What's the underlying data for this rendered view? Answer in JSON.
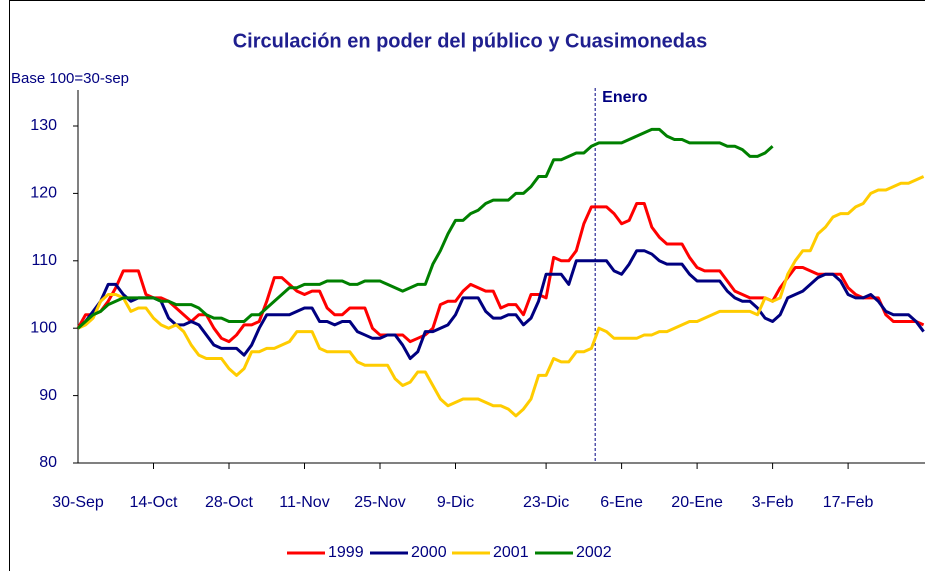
{
  "chart_data": {
    "type": "line",
    "title": "Circulación en poder del público y Cuasimonedas",
    "y_label": "Base 100=30-sep",
    "categories": [
      "30-Sep",
      null,
      null,
      null,
      null,
      null,
      null,
      null,
      null,
      null,
      "14-Oct",
      null,
      null,
      null,
      null,
      null,
      null,
      null,
      null,
      null,
      "28-Oct",
      null,
      null,
      null,
      null,
      null,
      null,
      null,
      null,
      null,
      "11-Nov",
      null,
      null,
      null,
      null,
      null,
      null,
      null,
      null,
      null,
      "25-Nov",
      null,
      null,
      null,
      null,
      null,
      null,
      null,
      null,
      null,
      "9-Dic",
      null,
      null,
      null,
      null,
      null,
      null,
      null,
      null,
      null,
      null,
      null,
      "23-Dic",
      null,
      null,
      null,
      null,
      null,
      null,
      null,
      null,
      null,
      "6-Ene",
      null,
      null,
      null,
      null,
      null,
      null,
      null,
      null,
      null,
      "20-Ene",
      null,
      null,
      null,
      null,
      null,
      null,
      null,
      null,
      null,
      "3-Feb",
      null,
      null,
      null,
      null,
      null,
      null,
      null,
      null,
      null,
      "17-Feb",
      null,
      null,
      null,
      null,
      null,
      null,
      null,
      null,
      null,
      null
    ],
    "series": [
      {
        "name": "1999",
        "color": "#ff0000",
        "values": [
          100,
          102,
          102,
          102.5,
          104,
          106,
          108.5,
          108.5,
          108.5,
          105,
          104.5,
          104.5,
          104,
          103,
          102,
          101,
          102,
          102,
          100,
          98.5,
          98,
          99,
          100.5,
          100.5,
          101,
          104,
          107.5,
          107.5,
          106.5,
          105.5,
          105,
          105.5,
          105.5,
          103,
          102,
          102,
          103,
          103,
          103,
          100,
          99,
          99,
          99,
          99,
          98,
          98.5,
          99,
          100,
          103.5,
          104,
          104,
          105.5,
          106.5,
          106,
          105.5,
          105.5,
          103,
          103.5,
          103.5,
          102,
          105,
          105,
          104.5,
          110.5,
          110,
          110,
          111.5,
          115.5,
          118,
          118,
          118,
          117,
          115.5,
          116,
          118.5,
          118.5,
          115,
          113.5,
          112.5,
          112.5,
          112.5,
          110.5,
          109,
          108.5,
          108.5,
          108.5,
          107,
          105.5,
          105,
          104.5,
          104.5,
          104.5,
          104,
          106,
          107.5,
          109,
          109,
          108.5,
          108,
          108,
          108,
          108,
          106,
          105,
          104.5,
          104.5,
          104.5,
          102,
          101,
          101,
          101,
          101,
          100.5
        ]
      },
      {
        "name": "2000",
        "color": "#000080",
        "values": [
          100,
          101,
          102.5,
          104,
          106.5,
          106.5,
          105,
          104,
          104.5,
          104.5,
          104.5,
          104,
          101.5,
          100.5,
          100.5,
          101,
          100.5,
          99,
          97.5,
          97,
          97,
          97,
          96,
          97.5,
          100,
          102,
          102,
          102,
          102,
          102.5,
          103,
          103,
          101,
          101,
          100.5,
          101,
          101,
          99.5,
          99,
          98.5,
          98.5,
          99,
          99,
          97.5,
          95.5,
          96.5,
          99.5,
          99.5,
          100,
          100.5,
          102,
          104.5,
          104.5,
          104.5,
          102.5,
          101.5,
          101.5,
          102,
          102,
          100.5,
          101.5,
          104,
          108,
          108,
          108,
          106.5,
          110,
          110,
          110,
          110,
          110,
          108.5,
          108,
          109.5,
          111.5,
          111.5,
          111,
          110,
          109.5,
          109.5,
          109.5,
          108,
          107,
          107,
          107,
          107,
          105.5,
          104.5,
          104,
          104,
          103,
          101.5,
          101,
          102,
          104.5,
          105,
          105.5,
          106.5,
          107.5,
          108,
          108,
          107,
          105,
          104.5,
          104.5,
          105,
          104,
          102.5,
          102,
          102,
          102,
          101,
          99.5
        ]
      },
      {
        "name": "2001",
        "color": "#ffcc00",
        "values": [
          100,
          100.5,
          101.5,
          104,
          105,
          105,
          104.5,
          102.5,
          103,
          103,
          101.5,
          100.5,
          100,
          100.5,
          99.5,
          97.5,
          96,
          95.5,
          95.5,
          95.5,
          94,
          93,
          94,
          96.5,
          96.5,
          97,
          97,
          97.5,
          98,
          99.5,
          99.5,
          99.5,
          97,
          96.5,
          96.5,
          96.5,
          96.5,
          95,
          94.5,
          94.5,
          94.5,
          94.5,
          92.5,
          91.5,
          92,
          93.5,
          93.5,
          91.5,
          89.5,
          88.5,
          89,
          89.5,
          89.5,
          89.5,
          89,
          88.5,
          88.5,
          88,
          87,
          88,
          89.5,
          93,
          93,
          95.5,
          95,
          95,
          96.5,
          96.5,
          97,
          100,
          99.5,
          98.5,
          98.5,
          98.5,
          98.5,
          99,
          99,
          99.5,
          99.5,
          100,
          100.5,
          101,
          101,
          101.5,
          102,
          102.5,
          102.5,
          102.5,
          102.5,
          102.5,
          102,
          104.5,
          104,
          104.5,
          108,
          110,
          111.5,
          111.5,
          114,
          115,
          116.5,
          117,
          117,
          118,
          118.5,
          120,
          120.5,
          120.5,
          121,
          121.5,
          121.5,
          122,
          122.5
        ]
      },
      {
        "name": "2002",
        "color": "#008000",
        "values": [
          100,
          101,
          102,
          102.5,
          103.5,
          104,
          104.5,
          104.5,
          104.5,
          104.5,
          104.5,
          104,
          104,
          103.5,
          103.5,
          103.5,
          103,
          102,
          101.5,
          101.5,
          101,
          101,
          101,
          102,
          102,
          103,
          104,
          105,
          106,
          106,
          106.5,
          106.5,
          106.5,
          107,
          107,
          107,
          106.5,
          106.5,
          107,
          107,
          107,
          106.5,
          106,
          105.5,
          106,
          106.5,
          106.5,
          109.5,
          111.5,
          114,
          116,
          116,
          117,
          117.5,
          118.5,
          119,
          119,
          119,
          120,
          120,
          121,
          122.5,
          122.5,
          125,
          125,
          125.5,
          126,
          126,
          127,
          127.5,
          127.5,
          127.5,
          127.5,
          128,
          128.5,
          129,
          129.5,
          129.5,
          128.5,
          128,
          128,
          127.5,
          127.5,
          127.5,
          127.5,
          127.5,
          127,
          127,
          126.5,
          125.5,
          125.5,
          126,
          127,
          null,
          null,
          null,
          null,
          null,
          null,
          null,
          null,
          null,
          null,
          null,
          null,
          null,
          null,
          null,
          null,
          null,
          null,
          null,
          null
        ]
      }
    ],
    "ylim": [
      80,
      130
    ],
    "yticks": [
      80,
      90,
      100,
      110,
      120,
      130
    ],
    "vline": {
      "label": "Enero",
      "after_category": 68
    },
    "legend": "bottom"
  }
}
